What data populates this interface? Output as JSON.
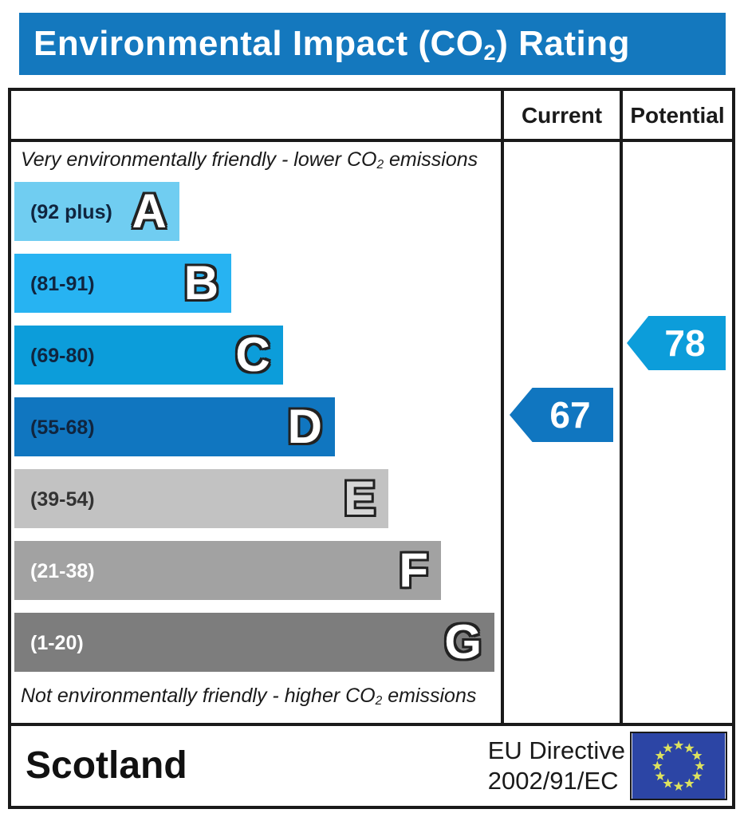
{
  "banner": {
    "title_prefix": "Environmental Impact (CO",
    "title_sub": "2",
    "title_suffix": ") Rating",
    "bg_color": "#1478be"
  },
  "header": {
    "current_label": "Current",
    "potential_label": "Potential"
  },
  "notes": {
    "top_prefix": "Very environmentally friendly - lower CO",
    "top_sub": "2",
    "top_suffix": " emissions",
    "bottom_prefix": "Not environmentally friendly - higher CO",
    "bottom_sub": "2",
    "bottom_suffix": " emissions"
  },
  "bands": [
    {
      "range": "(92 plus)",
      "letter": "A",
      "color": "#70cdf1",
      "label_color": "#10253f",
      "letter_fill": "#ffffff",
      "width_pct": 33.9
    },
    {
      "range": "(81-91)",
      "letter": "B",
      "color": "#27b3f2",
      "label_color": "#10253f",
      "letter_fill": "#ffffff",
      "width_pct": 44.6
    },
    {
      "range": "(69-80)",
      "letter": "C",
      "color": "#0c9dda",
      "label_color": "#10253f",
      "letter_fill": "#ffffff",
      "width_pct": 55.2
    },
    {
      "range": "(55-68)",
      "letter": "D",
      "color": "#1076c0",
      "label_color": "#10253f",
      "letter_fill": "#ffffff",
      "width_pct": 65.9
    },
    {
      "range": "(39-54)",
      "letter": "E",
      "color": "#c2c2c2",
      "label_color": "#333333",
      "letter_fill": "#d6d6d6",
      "width_pct": 76.9
    },
    {
      "range": "(21-38)",
      "letter": "F",
      "color": "#a2a2a2",
      "label_color": "#ffffff",
      "letter_fill": "#ffffff",
      "width_pct": 87.7
    },
    {
      "range": "(1-20)",
      "letter": "G",
      "color": "#7d7d7d",
      "label_color": "#ffffff",
      "letter_fill": "#ffffff",
      "width_pct": 98.7
    }
  ],
  "arrows": {
    "current": {
      "value": "67",
      "color": "#1076c0",
      "band_index": 3
    },
    "potential": {
      "value": "78",
      "color": "#0c9dda",
      "band_index": 2
    }
  },
  "footer": {
    "region": "Scotland",
    "directive_line1": "EU Directive",
    "directive_line2": "2002/91/EC",
    "flag": {
      "bg": "#2c45a5",
      "star_color": "#dde25e",
      "star_count": 12
    }
  },
  "chart_data": {
    "type": "bar",
    "title": "Environmental Impact (CO2) Rating",
    "categories": [
      "A",
      "B",
      "C",
      "D",
      "E",
      "F",
      "G"
    ],
    "band_ranges": [
      "92 plus",
      "81-91",
      "69-80",
      "55-68",
      "39-54",
      "21-38",
      "1-20"
    ],
    "band_colors": [
      "#70cdf1",
      "#27b3f2",
      "#0c9dda",
      "#1076c0",
      "#c2c2c2",
      "#a2a2a2",
      "#7d7d7d"
    ],
    "bar_length_pct": [
      33.9,
      44.6,
      55.2,
      65.9,
      76.9,
      87.7,
      98.7
    ],
    "scale_note_top": "Very environmentally friendly - lower CO2 emissions",
    "scale_note_bottom": "Not environmentally friendly - higher CO2 emissions",
    "value_range": [
      1,
      100
    ],
    "series": [
      {
        "name": "Current",
        "value": 67,
        "band": "D"
      },
      {
        "name": "Potential",
        "value": 78,
        "band": "C"
      }
    ],
    "legend_position": "columns-right",
    "region": "Scotland",
    "directive": "EU Directive 2002/91/EC"
  }
}
